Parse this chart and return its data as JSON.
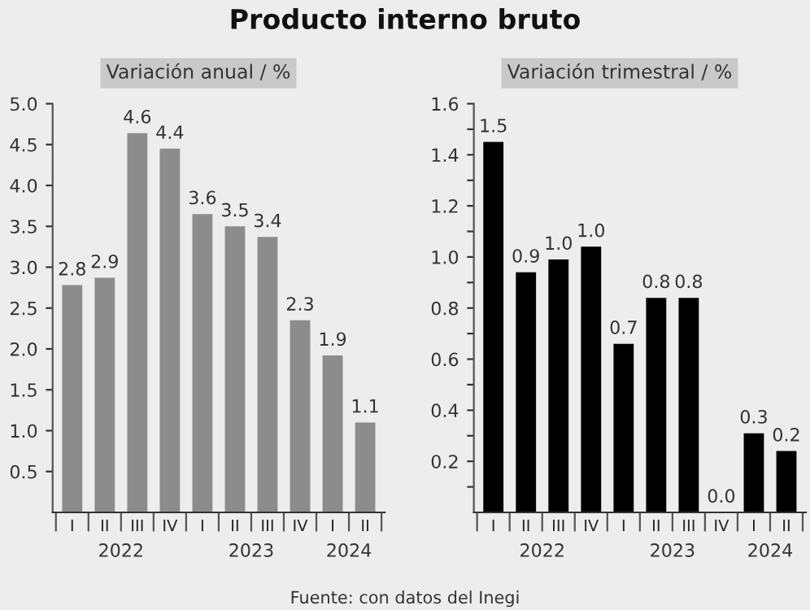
{
  "chart_data": [
    {
      "type": "bar",
      "title": "Producto interno bruto",
      "subtitle": "Variación anual / %",
      "categories": [
        "I",
        "II",
        "III",
        "IV",
        "I",
        "II",
        "III",
        "IV",
        "I",
        "II"
      ],
      "values": [
        2.78,
        2.87,
        4.64,
        4.45,
        3.65,
        3.5,
        3.37,
        2.35,
        1.92,
        1.1
      ],
      "value_labels": [
        "2.8",
        "2.9",
        "4.6",
        "4.4",
        "3.6",
        "3.5",
        "3.4",
        "2.3",
        "1.9",
        "1.1"
      ],
      "color": "#8c8c8c",
      "ylim": [
        0,
        5
      ],
      "yticks": [
        0.5,
        {
          "value": 1,
          "label": "1.0"
        },
        1.5,
        {
          "value": 2,
          "label": "2.0"
        },
        2.5,
        {
          "value": 3,
          "label": "3.0"
        },
        3.5,
        {
          "value": 4,
          "label": "4.0"
        },
        4.5,
        {
          "value": 5,
          "label": "5.0"
        }
      ],
      "annotations": [
        "2022",
        "2023",
        "2024",
        "Fuente: con datos del Inegi"
      ]
    },
    {
      "type": "bar",
      "subtitle": "Variación trimestral / %",
      "categories": [
        "I",
        "II",
        "III",
        "IV",
        "I",
        "II",
        "III",
        "IV",
        "I",
        "II"
      ],
      "values": [
        1.45,
        0.94,
        0.99,
        1.04,
        0.66,
        0.84,
        0.84,
        0.0,
        0.31,
        0.24
      ],
      "value_labels": [
        "1.5",
        "0.9",
        "1.0",
        "1.0",
        "0.7",
        "0.8",
        "0.8",
        "0.0",
        "0.3",
        "0.2"
      ],
      "color": "#000000",
      "ylim": [
        0,
        1.6
      ],
      "yticks": [
        {
          "value": 0.1,
          "label": null
        },
        0.2,
        {
          "value": 0.3,
          "label": null
        },
        0.4,
        {
          "value": 0.5,
          "label": null
        },
        0.6,
        {
          "value": 0.7,
          "label": null
        },
        0.8,
        {
          "value": 0.9,
          "label": null
        },
        {
          "value": 1.0,
          "label": "1.0"
        },
        {
          "value": 1.1,
          "label": null
        },
        1.2,
        {
          "value": 1.3,
          "label": null
        },
        1.4,
        {
          "value": 1.5,
          "label": null
        },
        1.6
      ],
      "annotations": [
        "2022",
        "2023",
        "2024"
      ]
    }
  ]
}
